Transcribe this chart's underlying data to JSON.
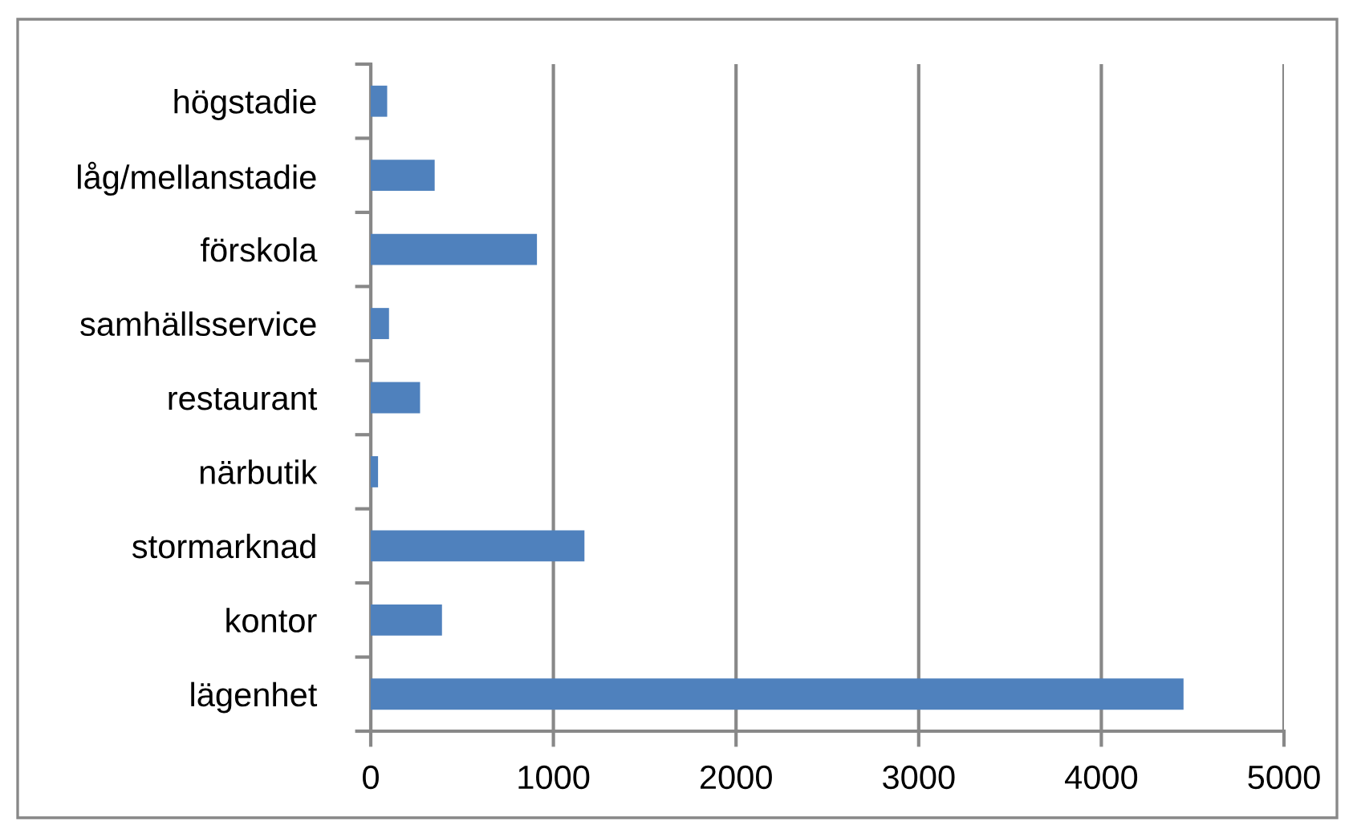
{
  "chart_data": {
    "type": "bar",
    "orientation": "horizontal",
    "categories": [
      "högstadie",
      "låg/mellanstadie",
      "förskola",
      "samhällsservice",
      "restaurant",
      "närbutik",
      "stormarknad",
      "kontor",
      "lägenhet"
    ],
    "values": [
      90,
      350,
      910,
      100,
      270,
      40,
      1170,
      390,
      4450
    ],
    "color": "#4f81bd",
    "xlim": [
      0,
      5000
    ],
    "xticks": [
      0,
      1000,
      2000,
      3000,
      4000,
      5000
    ],
    "grid": "x"
  }
}
